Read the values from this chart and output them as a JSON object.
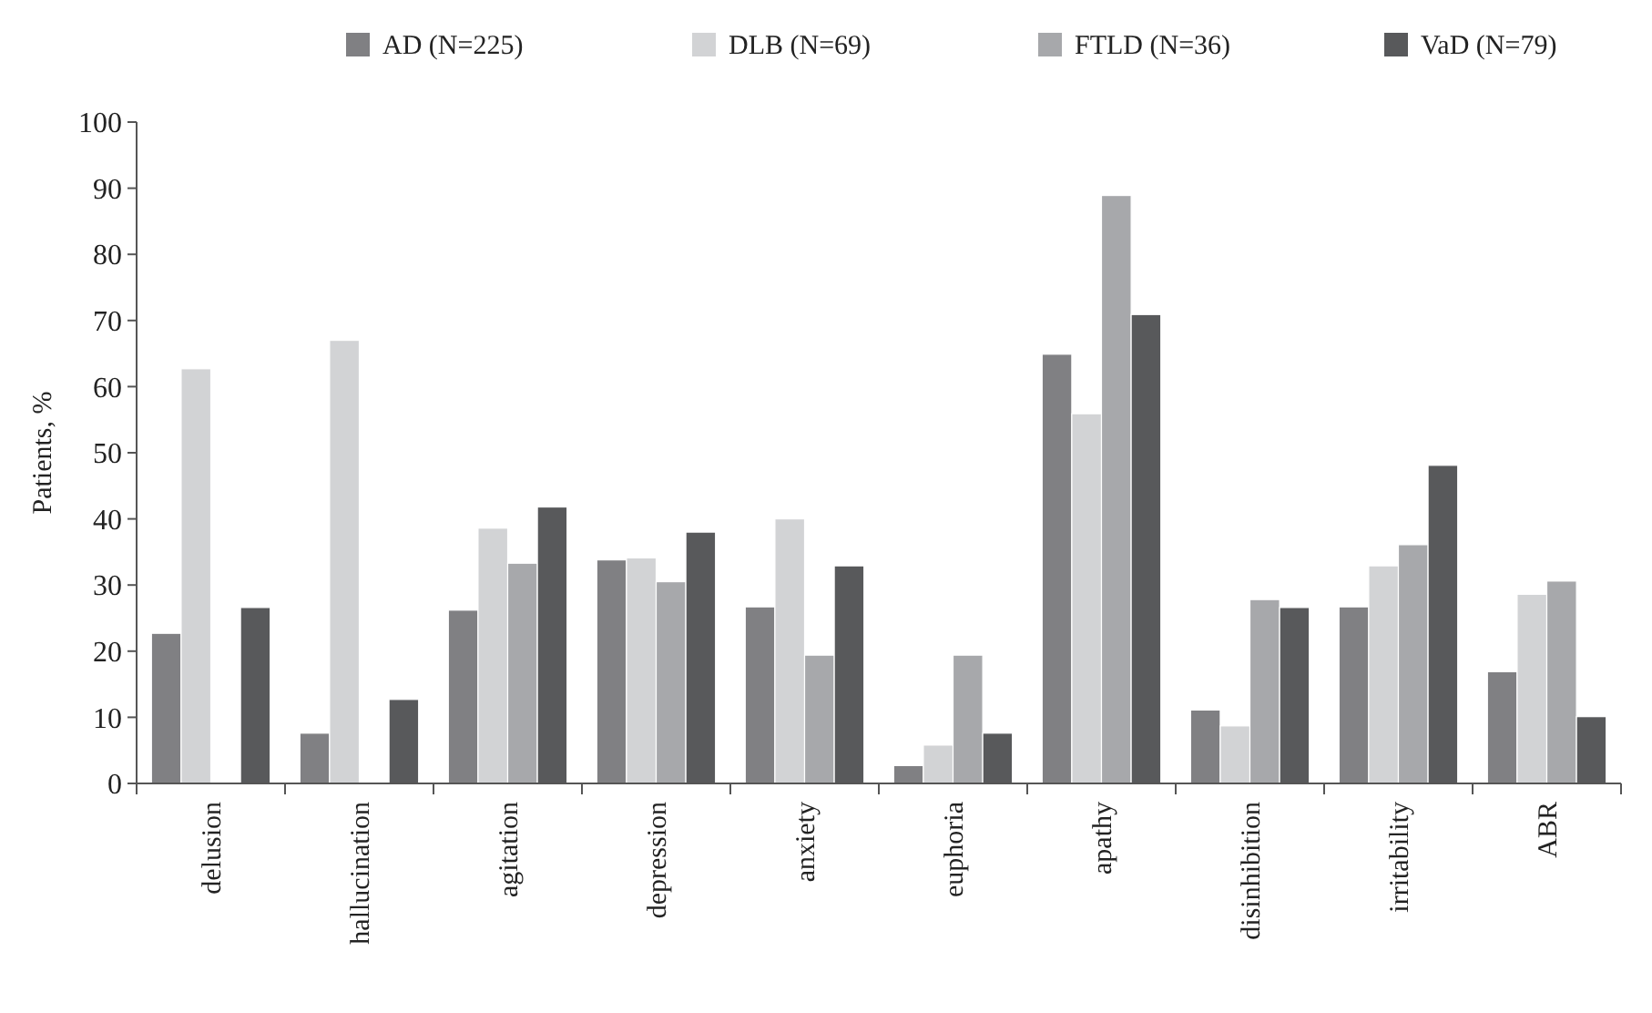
{
  "chart_data": {
    "type": "bar",
    "ylabel": "Patients, %",
    "categories": [
      "delusion",
      "hallucination",
      "agitation",
      "depression",
      "anxiety",
      "euphoria",
      "apathy",
      "disinhibition",
      "irritability",
      "ABR"
    ],
    "series": [
      {
        "name": "AD (N=225)",
        "color": "#808083",
        "values": [
          22.7,
          7.6,
          26.2,
          33.8,
          26.7,
          2.7,
          64.9,
          11.1,
          26.7,
          16.9
        ]
      },
      {
        "name": "DLB (N=69)",
        "color": "#d2d3d5",
        "values": [
          62.7,
          67,
          38.6,
          34.1,
          40,
          5.8,
          55.9,
          8.7,
          32.9,
          28.6
        ]
      },
      {
        "name": "FTLD (N=36)",
        "color": "#a7a8ab",
        "values": [
          0,
          0,
          33.3,
          30.5,
          19.4,
          19.4,
          88.9,
          27.8,
          36.1,
          30.6
        ]
      },
      {
        "name": "VaD (N=79)",
        "color": "#58595b",
        "values": [
          26.6,
          12.7,
          41.8,
          38,
          32.9,
          7.6,
          70.9,
          26.6,
          48.1,
          10.1
        ]
      }
    ],
    "ylim": [
      0,
      100
    ],
    "yticks": [
      0,
      10,
      20,
      30,
      40,
      50,
      60,
      70,
      80,
      90,
      100
    ],
    "grid": false,
    "legend": "top"
  }
}
